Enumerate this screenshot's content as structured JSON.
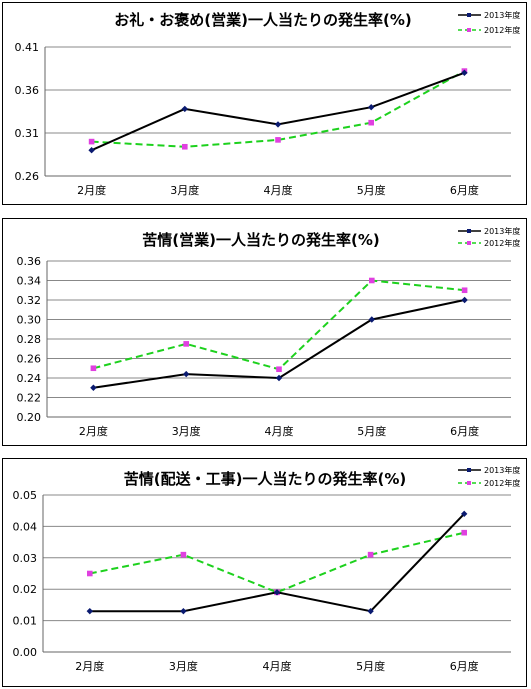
{
  "legend": {
    "series_2013": "2013年度",
    "series_2012": "2012年度"
  },
  "colors": {
    "s2013": "#000000",
    "s2013_marker": "#0a1a70",
    "s2012": "#1dd11d",
    "s2012_marker": "#e040e0"
  },
  "chart_data": [
    {
      "type": "line",
      "title": "お礼・お褒め(営業)一人当たりの発生率(%)",
      "categories": [
        "2月度",
        "3月度",
        "4月度",
        "5月度",
        "6月度"
      ],
      "ylim": [
        0.26,
        0.41
      ],
      "yticks": [
        "0.26",
        "0.31",
        "0.36",
        "0.41"
      ],
      "series": [
        {
          "name": "2013年度",
          "values": [
            0.29,
            0.338,
            0.32,
            0.34,
            0.38
          ]
        },
        {
          "name": "2012年度",
          "values": [
            0.3,
            0.294,
            0.302,
            0.322,
            0.382
          ]
        }
      ],
      "grid": true,
      "legend_position": "top-right"
    },
    {
      "type": "line",
      "title": "苦情(営業)一人当たりの発生率(%)",
      "categories": [
        "2月度",
        "3月度",
        "4月度",
        "5月度",
        "6月度"
      ],
      "ylim": [
        0.2,
        0.36
      ],
      "yticks": [
        "0.20",
        "0.22",
        "0.24",
        "0.26",
        "0.28",
        "0.30",
        "0.32",
        "0.34",
        "0.36"
      ],
      "series": [
        {
          "name": "2013年度",
          "values": [
            0.23,
            0.244,
            0.24,
            0.3,
            0.32
          ]
        },
        {
          "name": "2012年度",
          "values": [
            0.25,
            0.275,
            0.249,
            0.34,
            0.33
          ]
        }
      ],
      "grid": true,
      "legend_position": "top-right"
    },
    {
      "type": "line",
      "title": "苦情(配送・工事)一人当たりの発生率(%)",
      "categories": [
        "2月度",
        "3月度",
        "4月度",
        "5月度",
        "6月度"
      ],
      "ylim": [
        0.0,
        0.05
      ],
      "yticks": [
        "0.00",
        "0.01",
        "0.02",
        "0.03",
        "0.04",
        "0.05"
      ],
      "series": [
        {
          "name": "2013年度",
          "values": [
            0.013,
            0.013,
            0.019,
            0.013,
            0.044
          ]
        },
        {
          "name": "2012年度",
          "values": [
            0.025,
            0.031,
            0.019,
            0.031,
            0.038
          ]
        }
      ],
      "grid": true,
      "legend_position": "top-right"
    }
  ]
}
